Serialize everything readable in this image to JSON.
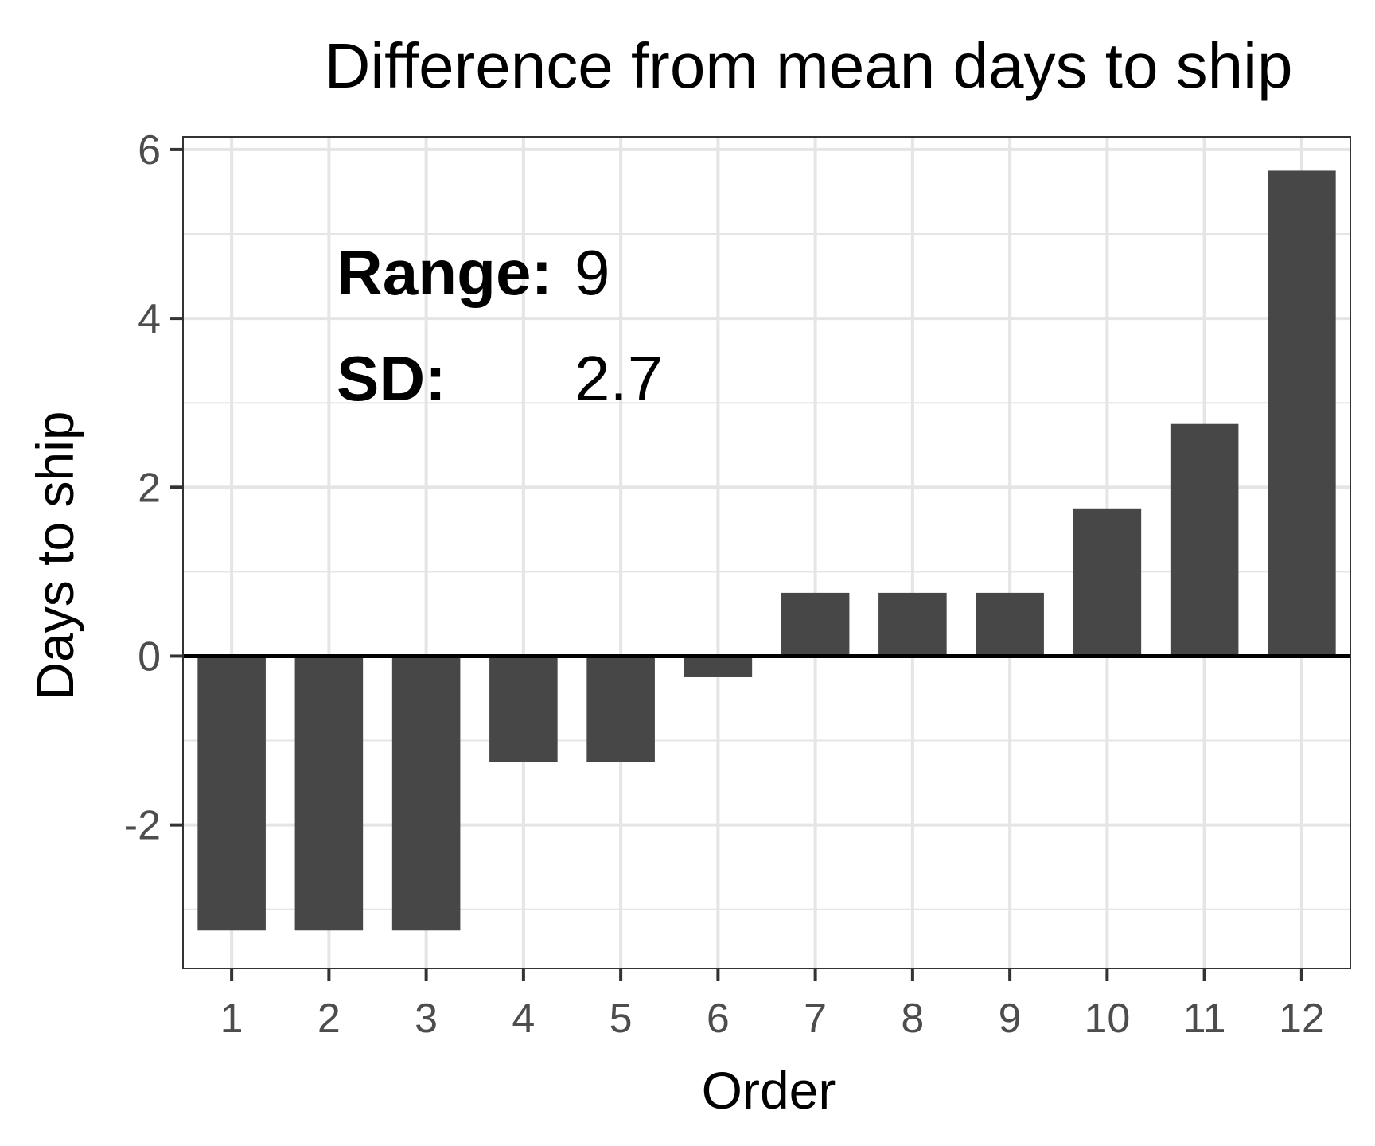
{
  "chart_data": {
    "type": "bar",
    "title": "Difference from mean days to ship",
    "xlabel": "Order",
    "ylabel": "Days to ship",
    "categories": [
      "1",
      "2",
      "3",
      "4",
      "5",
      "6",
      "7",
      "8",
      "9",
      "10",
      "11",
      "12"
    ],
    "values": [
      -3.25,
      -3.25,
      -3.25,
      -1.25,
      -1.25,
      -0.25,
      0.75,
      0.75,
      0.75,
      1.75,
      2.75,
      5.75
    ],
    "ylim": [
      -3.7,
      6.15
    ],
    "yticks": [
      -2,
      0,
      2,
      4,
      6
    ],
    "ytick_labels": [
      "-2",
      "0",
      "2",
      "4",
      "6"
    ],
    "grid": true,
    "colors": {
      "bar": "#474747",
      "grid": "#e5e5e5",
      "baseline": "#000000",
      "frame": "#333333"
    },
    "annotations": [
      {
        "label": "Range:",
        "value": "9"
      },
      {
        "label": "SD:",
        "value": "2.7"
      }
    ]
  }
}
